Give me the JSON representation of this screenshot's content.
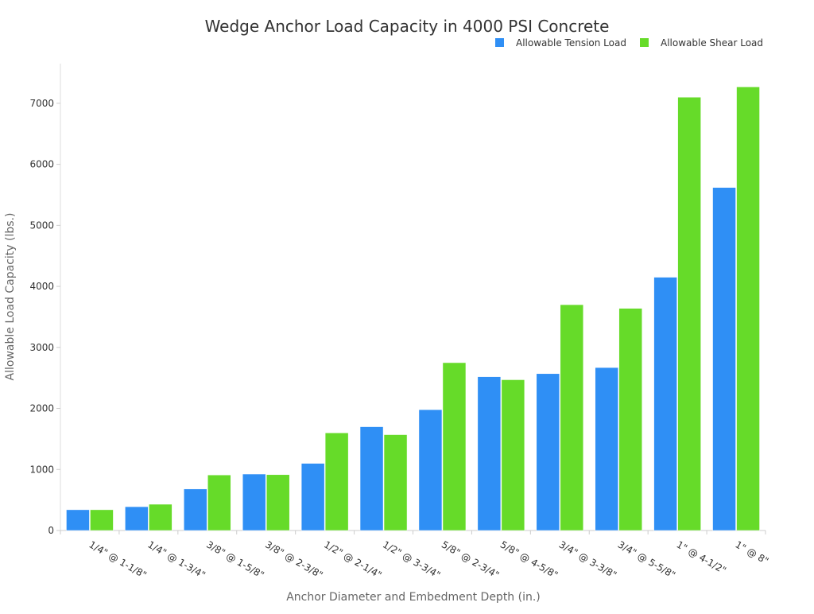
{
  "chart_data": {
    "type": "bar",
    "title": "Wedge Anchor Load Capacity in 4000 PSI Concrete",
    "xlabel": "Anchor Diameter and Embedment Depth (in.)",
    "ylabel": "Allowable Load Capacity (lbs.)",
    "ylim": [
      0,
      7650
    ],
    "yticks": [
      0,
      1000,
      2000,
      3000,
      4000,
      5000,
      6000,
      7000
    ],
    "grid": false,
    "legend_placement": "top-right",
    "categories": [
      "1/4\" @ 1-1/8\"",
      "1/4\" @ 1-3/4\"",
      "3/8\" @ 1-5/8\"",
      "3/8\" @ 2-3/8\"",
      "1/2\" @ 2-1/4\"",
      "1/2\" @ 3-3/4\"",
      "5/8\" @ 2-3/4\"",
      "5/8\" @ 4-5/8\"",
      "3/4\" @ 3-3/8\"",
      "3/4\" @ 5-5/8\"",
      "1\" @ 4-1/2\"",
      "1\" @ 8\""
    ],
    "series": [
      {
        "name": "Allowable Tension Load",
        "color": "#2f8ff5",
        "values": [
          340,
          390,
          680,
          925,
          1100,
          1700,
          1980,
          2520,
          2570,
          2670,
          4150,
          5620
        ]
      },
      {
        "name": "Allowable Shear Load",
        "color": "#66db29",
        "values": [
          340,
          430,
          910,
          915,
          1600,
          1570,
          2750,
          2470,
          3700,
          3640,
          7100,
          7270
        ]
      }
    ]
  }
}
